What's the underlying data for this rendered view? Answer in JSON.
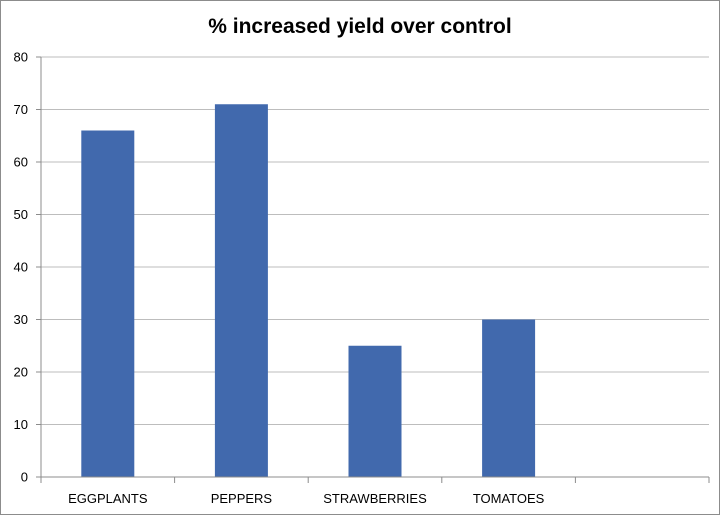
{
  "chart_data": {
    "type": "bar",
    "title": "% increased yield over control",
    "categories": [
      "EGGPLANTS",
      "PEPPERS",
      "STRAWBERRIES",
      "TOMATOES",
      ""
    ],
    "values": [
      66,
      71,
      25,
      30,
      null
    ],
    "ylim": [
      0,
      80
    ],
    "yticks": [
      0,
      10,
      20,
      30,
      40,
      50,
      60,
      70,
      80
    ],
    "grid": true,
    "legend": "none",
    "bar_color": "#4169AD",
    "grid_color": "#BDBDBD",
    "axis_color": "#8C8C8C"
  }
}
